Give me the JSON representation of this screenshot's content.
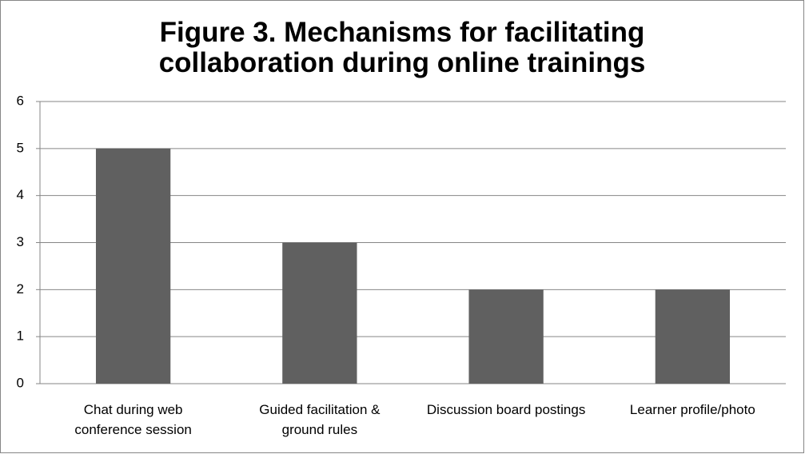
{
  "chart_data": {
    "type": "bar",
    "title": "Figure 3. Mechanisms for facilitating collaboration during online trainings",
    "categories": [
      "Chat during web conference session",
      "Guided facilitation & ground rules",
      "Discussion board postings",
      "Learner profile/photo"
    ],
    "values": [
      5,
      3,
      2,
      2
    ],
    "color": "#606060",
    "ylim": [
      0,
      6
    ],
    "yticks": [
      0,
      1,
      2,
      3,
      4,
      5,
      6
    ],
    "grid": true
  }
}
